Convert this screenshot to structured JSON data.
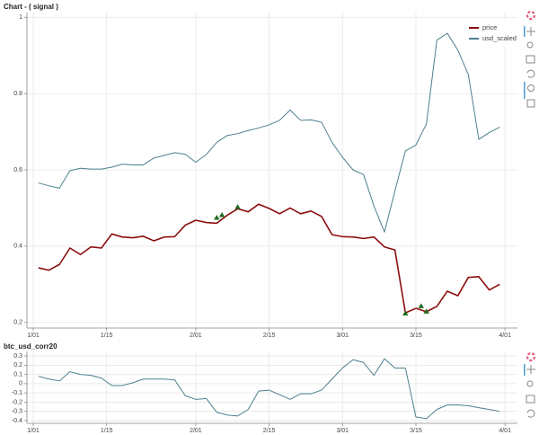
{
  "chart_data": [
    {
      "type": "line",
      "title": "Chart - ( signal )",
      "x": [
        "1/02",
        "1/04",
        "1/06",
        "1/08",
        "1/10",
        "1/12",
        "1/14",
        "1/16",
        "1/18",
        "1/20",
        "1/22",
        "1/24",
        "1/26",
        "1/28",
        "1/30",
        "2/01",
        "2/03",
        "2/05",
        "2/07",
        "2/09",
        "2/11",
        "2/13",
        "2/15",
        "2/17",
        "2/19",
        "2/21",
        "2/23",
        "2/25",
        "2/27",
        "3/01",
        "3/03",
        "3/05",
        "3/07",
        "3/09",
        "3/11",
        "3/13",
        "3/15",
        "3/17",
        "3/19",
        "3/21",
        "3/23",
        "3/25",
        "3/27",
        "3/29",
        "3/31"
      ],
      "series": [
        {
          "name": "price",
          "color": "#8b0d0d",
          "width": 1.6,
          "values": [
            0.343,
            0.337,
            0.352,
            0.395,
            0.378,
            0.398,
            0.395,
            0.432,
            0.424,
            0.422,
            0.426,
            0.414,
            0.424,
            0.425,
            0.455,
            0.468,
            0.462,
            0.46,
            0.481,
            0.498,
            0.49,
            0.51,
            0.499,
            0.485,
            0.5,
            0.485,
            0.492,
            0.478,
            0.43,
            0.425,
            0.424,
            0.42,
            0.424,
            0.398,
            0.39,
            0.225,
            0.237,
            0.228,
            0.242,
            0.282,
            0.27,
            0.318,
            0.32,
            0.285,
            0.3
          ]
        },
        {
          "name": "usd_scaled",
          "color": "#4e7f8e",
          "width": 1,
          "values": [
            0.566,
            0.558,
            0.552,
            0.598,
            0.604,
            0.602,
            0.602,
            0.607,
            0.615,
            0.613,
            0.613,
            0.631,
            0.638,
            0.645,
            0.641,
            0.62,
            0.64,
            0.672,
            0.69,
            0.695,
            0.703,
            0.71,
            0.718,
            0.73,
            0.757,
            0.73,
            0.731,
            0.725,
            0.672,
            0.633,
            0.6,
            0.588,
            0.505,
            0.437,
            0.545,
            0.65,
            0.665,
            0.72,
            0.94,
            0.958,
            0.914,
            0.85,
            0.68,
            0.698,
            0.712
          ]
        }
      ],
      "signals": {
        "color": "#1f6b1f",
        "x": [
          "2/05",
          "2/06",
          "2/09",
          "3/13",
          "3/16",
          "3/17"
        ],
        "values": [
          0.474,
          0.481,
          0.502,
          0.223,
          0.242,
          0.228
        ]
      },
      "xlim": [
        "1/01",
        "4/02"
      ],
      "xticks": [
        "1/01",
        "1/15",
        "2/01",
        "2/15",
        "3/01",
        "3/15",
        "4/01"
      ],
      "ylim": [
        0.19,
        1.01
      ],
      "yticks": [
        0.2,
        0.4,
        0.6,
        0.8,
        1
      ],
      "grid": true,
      "legend": "top_right"
    },
    {
      "type": "line",
      "title": "btc_usd_corr20",
      "x": [
        "1/02",
        "1/04",
        "1/06",
        "1/08",
        "1/10",
        "1/12",
        "1/14",
        "1/16",
        "1/18",
        "1/20",
        "1/22",
        "1/24",
        "1/26",
        "1/28",
        "1/30",
        "2/01",
        "2/03",
        "2/05",
        "2/07",
        "2/09",
        "2/11",
        "2/13",
        "2/15",
        "2/17",
        "2/19",
        "2/21",
        "2/23",
        "2/25",
        "2/27",
        "3/01",
        "3/03",
        "3/05",
        "3/07",
        "3/09",
        "3/11",
        "3/13",
        "3/15",
        "3/17",
        "3/19",
        "3/21",
        "3/23",
        "3/25",
        "3/27",
        "3/29",
        "3/31"
      ],
      "series": [
        {
          "color": "#4e7f8e",
          "width": 1,
          "values": [
            0.08,
            0.05,
            0.03,
            0.13,
            0.1,
            0.09,
            0.06,
            -0.02,
            -0.02,
            0.01,
            0.05,
            0.05,
            0.05,
            0.04,
            -0.13,
            -0.17,
            -0.16,
            -0.31,
            -0.34,
            -0.35,
            -0.28,
            -0.08,
            -0.07,
            -0.12,
            -0.17,
            -0.11,
            -0.11,
            -0.07,
            0.05,
            0.17,
            0.26,
            0.23,
            0.09,
            0.27,
            0.17,
            0.17,
            -0.36,
            -0.38,
            -0.28,
            -0.23,
            -0.23,
            -0.24,
            -0.26,
            -0.28,
            -0.3
          ]
        }
      ],
      "xlim": [
        "1/01",
        "4/02"
      ],
      "xticks": [
        "1/01",
        "1/15",
        "2/01",
        "2/15",
        "3/01",
        "3/15",
        "4/01"
      ],
      "ylim": [
        -0.42,
        0.34
      ],
      "yticks": [
        0.3,
        0.2,
        0.1,
        0,
        -0.1,
        -0.2,
        -0.3,
        -0.4
      ],
      "grid": true
    }
  ]
}
